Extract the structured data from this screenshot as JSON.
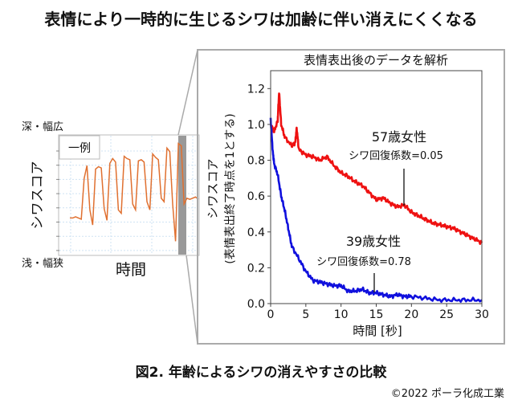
{
  "title": "表情により一時的に生じるシワは加齢に伴い消えにくくなる",
  "caption": "図2. 年齢によるシワの消えやすさの比較",
  "copyright": "©2022 ポーラ化成工業",
  "example_panel": {
    "badge": "一例",
    "top_label": "深・幅広",
    "bottom_label": "浅・幅狭",
    "ylabel": "シワスコア",
    "xlabel": "時間",
    "trace_color": "#e07030",
    "trace": [
      0.28,
      0.28,
      0.29,
      0.28,
      0.27,
      0.62,
      0.73,
      0.35,
      0.22,
      0.7,
      0.72,
      0.71,
      0.36,
      0.26,
      0.75,
      0.79,
      0.76,
      0.35,
      0.32,
      0.81,
      0.79,
      0.78,
      0.4,
      0.35,
      0.77,
      0.78,
      0.76,
      0.42,
      0.35,
      0.83,
      0.8,
      0.78,
      0.45,
      0.42,
      0.88,
      0.85,
      0.4,
      0.08,
      0.92,
      0.9,
      0.4,
      0.45,
      0.44,
      0.45,
      0.46,
      0.44
    ]
  },
  "chart_data": {
    "type": "line",
    "title": "表情表出後のデータを解析",
    "xlabel": "時間 [秒]",
    "ylabel": "シワスコア",
    "ylabel_sub": "(表情表出終了時点を1とする)",
    "xlim": [
      0,
      30
    ],
    "ylim": [
      0,
      1.3
    ],
    "xticks": [
      "0",
      "5",
      "10",
      "15",
      "20",
      "25",
      "30"
    ],
    "yticks": [
      "0.0",
      "0.2",
      "0.4",
      "0.6",
      "0.8",
      "1.0",
      "1.2"
    ],
    "series": [
      {
        "name": "57歳女性",
        "annotation": "シワ回復係数=0.05",
        "color": "#ee1111",
        "x": [
          0,
          0.5,
          1,
          1.2,
          1.5,
          2,
          3,
          3.5,
          3.7,
          4,
          5,
          6,
          7,
          8,
          9,
          10,
          11,
          12,
          13,
          14,
          15,
          16,
          17,
          18,
          19,
          20,
          21,
          22,
          23,
          24,
          25,
          26,
          27,
          28,
          29,
          30
        ],
        "y": [
          1.0,
          0.96,
          1.02,
          1.18,
          1.0,
          0.93,
          0.88,
          0.9,
          0.98,
          0.86,
          0.83,
          0.82,
          0.8,
          0.82,
          0.77,
          0.73,
          0.71,
          0.68,
          0.66,
          0.62,
          0.58,
          0.59,
          0.56,
          0.54,
          0.55,
          0.51,
          0.49,
          0.47,
          0.45,
          0.44,
          0.43,
          0.42,
          0.4,
          0.38,
          0.36,
          0.34
        ]
      },
      {
        "name": "39歳女性",
        "annotation": "シワ回復係数=0.78",
        "color": "#1010dd",
        "x": [
          0,
          0.3,
          0.5,
          1,
          1.5,
          2,
          2.5,
          3,
          4,
          5,
          6,
          7,
          8,
          9,
          10,
          11,
          12,
          13,
          14,
          15,
          16,
          17,
          18,
          19,
          20,
          22,
          24,
          26,
          28,
          30
        ],
        "y": [
          1.03,
          0.85,
          0.78,
          0.72,
          0.6,
          0.52,
          0.42,
          0.32,
          0.25,
          0.18,
          0.13,
          0.12,
          0.11,
          0.1,
          0.1,
          0.07,
          0.07,
          0.08,
          0.06,
          0.06,
          0.05,
          0.04,
          0.05,
          0.04,
          0.04,
          0.03,
          0.02,
          0.02,
          0.02,
          0.02
        ]
      }
    ]
  }
}
